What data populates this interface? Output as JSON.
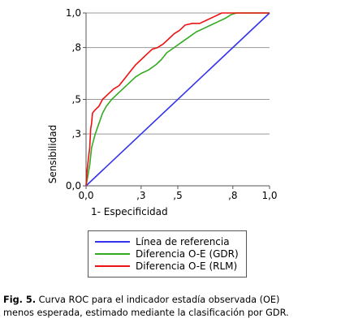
{
  "chart_data": {
    "type": "line",
    "xlabel": "1- Especificidad",
    "ylabel": "Sensibilidad",
    "xlim": [
      0,
      1
    ],
    "ylim": [
      0,
      1
    ],
    "xticks": [
      0,
      0.3,
      0.5,
      0.8,
      1.0
    ],
    "xtick_labels": [
      "0,0",
      ",3",
      ",5",
      ",8",
      "1,0"
    ],
    "yticks": [
      0,
      0.3,
      0.5,
      0.8,
      1.0
    ],
    "ytick_labels": [
      "0,0",
      ",3",
      ",5",
      ",8",
      "1,0"
    ],
    "grid": "horizontal",
    "legend_position": "below",
    "series": [
      {
        "name": "Línea de referencia",
        "color": "#3333ee",
        "points": [
          [
            0,
            0
          ],
          [
            1,
            1
          ]
        ]
      },
      {
        "name": "Diferencia O-E (GDR)",
        "color": "#33aa22",
        "points": [
          [
            0,
            0
          ],
          [
            0.01,
            0.06
          ],
          [
            0.02,
            0.12
          ],
          [
            0.03,
            0.22
          ],
          [
            0.05,
            0.3
          ],
          [
            0.07,
            0.36
          ],
          [
            0.09,
            0.42
          ],
          [
            0.11,
            0.46
          ],
          [
            0.14,
            0.5
          ],
          [
            0.17,
            0.53
          ],
          [
            0.2,
            0.56
          ],
          [
            0.24,
            0.6
          ],
          [
            0.27,
            0.63
          ],
          [
            0.3,
            0.65
          ],
          [
            0.34,
            0.67
          ],
          [
            0.38,
            0.7
          ],
          [
            0.41,
            0.73
          ],
          [
            0.44,
            0.77
          ],
          [
            0.48,
            0.8
          ],
          [
            0.52,
            0.83
          ],
          [
            0.56,
            0.86
          ],
          [
            0.6,
            0.89
          ],
          [
            0.64,
            0.91
          ],
          [
            0.68,
            0.93
          ],
          [
            0.72,
            0.95
          ],
          [
            0.76,
            0.97
          ],
          [
            0.79,
            0.99
          ],
          [
            0.82,
            1.02
          ],
          [
            0.87,
            1.03
          ],
          [
            0.93,
            1.05
          ],
          [
            0.97,
            1.06
          ],
          [
            1.0,
            1.08
          ]
        ]
      },
      {
        "name": "Diferencia O-E (RLM)",
        "color": "#ee1111",
        "points": [
          [
            0,
            0
          ],
          [
            0.005,
            0.08
          ],
          [
            0.012,
            0.15
          ],
          [
            0.02,
            0.22
          ],
          [
            0.025,
            0.33
          ],
          [
            0.03,
            0.36
          ],
          [
            0.035,
            0.42
          ],
          [
            0.05,
            0.44
          ],
          [
            0.07,
            0.46
          ],
          [
            0.09,
            0.5
          ],
          [
            0.12,
            0.53
          ],
          [
            0.15,
            0.56
          ],
          [
            0.18,
            0.58
          ],
          [
            0.21,
            0.62
          ],
          [
            0.24,
            0.66
          ],
          [
            0.27,
            0.7
          ],
          [
            0.3,
            0.73
          ],
          [
            0.33,
            0.76
          ],
          [
            0.36,
            0.79
          ],
          [
            0.39,
            0.8
          ],
          [
            0.42,
            0.82
          ],
          [
            0.45,
            0.85
          ],
          [
            0.48,
            0.88
          ],
          [
            0.51,
            0.9
          ],
          [
            0.54,
            0.93
          ],
          [
            0.58,
            0.94
          ],
          [
            0.62,
            0.94
          ],
          [
            0.66,
            0.96
          ],
          [
            0.7,
            0.98
          ],
          [
            0.74,
            1.0
          ],
          [
            0.78,
            1.01
          ],
          [
            0.82,
            1.04
          ],
          [
            0.86,
            1.05
          ],
          [
            0.9,
            1.05
          ],
          [
            0.94,
            1.06
          ],
          [
            0.96,
            1.07
          ],
          [
            1.0,
            1.08
          ]
        ]
      }
    ]
  },
  "caption": {
    "label": "Fig. 5.",
    "line1": " Curva ROC para el indicador estadía observada (OE)",
    "line2": "menos  esperada, estimado mediante la clasificación por GDR."
  }
}
